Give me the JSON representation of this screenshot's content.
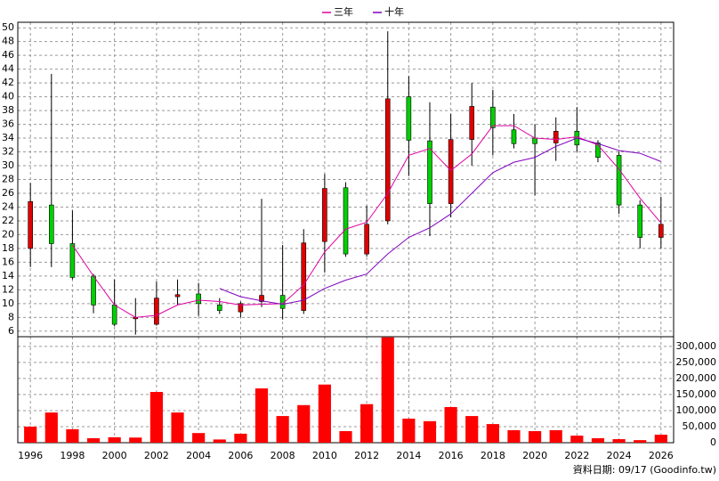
{
  "chart_data": [
    {
      "type": "candlestick",
      "x": [
        1996,
        1997,
        1998,
        1999,
        2000,
        2001,
        2002,
        2003,
        2004,
        2005,
        2006,
        2007,
        2008,
        2009,
        2010,
        2011,
        2012,
        2013,
        2014,
        2015,
        2016,
        2017,
        2018,
        2019,
        2020,
        2021,
        2022,
        2023,
        2024,
        2025,
        2026
      ],
      "open": [
        18,
        24.3,
        18.7,
        14,
        9.8,
        7.8,
        7,
        11,
        11.4,
        9.8,
        8.8,
        10.3,
        11.2,
        9,
        19,
        26.8,
        17.2,
        22,
        40,
        33.6,
        24.5,
        33.8,
        38.5,
        35.2,
        34,
        33.3,
        35,
        33.3,
        31.5,
        24.3,
        19.6
      ],
      "high": [
        27.5,
        43.3,
        23.5,
        14.3,
        13.5,
        10.8,
        13.2,
        13.5,
        13,
        10.8,
        10.3,
        25.2,
        18.5,
        20.8,
        28.8,
        27.6,
        24.2,
        49.5,
        43,
        39.2,
        37.5,
        42,
        41,
        37.5,
        36,
        37,
        38.5,
        33.7,
        32,
        25,
        25.5
      ],
      "low": [
        15.3,
        15.3,
        13.5,
        8.6,
        6.7,
        5.5,
        6.8,
        9.8,
        8.2,
        8.5,
        8,
        9.5,
        7.7,
        8.5,
        14.5,
        16.8,
        16.8,
        21.5,
        28.5,
        19.8,
        22.5,
        30,
        31.5,
        32.5,
        25.7,
        30.7,
        32,
        30.5,
        23,
        18,
        18
      ],
      "close": [
        24.8,
        18.7,
        13.8,
        9.8,
        7,
        8,
        10.8,
        11.3,
        10,
        9,
        10,
        11.2,
        9.3,
        18.8,
        26.7,
        17.2,
        21.5,
        39.7,
        33.7,
        24.5,
        33.8,
        38.6,
        35.5,
        33.2,
        33.2,
        35,
        33,
        31.2,
        24.3,
        19.6,
        21.5
      ],
      "up_color": "#e00000",
      "down_color": "#00d000",
      "series": [
        {
          "name": "三年",
          "color": "#e000a0",
          "values": [
            null,
            null,
            18.5,
            14,
            9.8,
            8,
            8.3,
            9.8,
            10.5,
            10.3,
            9.8,
            9.9,
            10,
            12.7,
            17.5,
            20.8,
            21.8,
            26,
            31.5,
            32.5,
            29.3,
            31.7,
            35.8,
            35.8,
            34,
            33.8,
            34.2,
            33,
            29.5,
            25.3,
            21.7
          ]
        },
        {
          "name": "十年",
          "color": "#8000c0",
          "values": [
            null,
            null,
            null,
            null,
            null,
            null,
            null,
            null,
            null,
            12.2,
            11,
            10.4,
            9.9,
            10.5,
            12.2,
            13.4,
            14.3,
            17.2,
            19.6,
            21,
            23,
            26,
            29,
            30.5,
            31.2,
            32.8,
            34,
            33.2,
            32.2,
            31.8,
            30.6
          ]
        }
      ],
      "xlim": [
        1995.4,
        2026.6
      ],
      "xticks": [
        1996,
        1998,
        2000,
        2002,
        2004,
        2006,
        2008,
        2010,
        2012,
        2014,
        2016,
        2018,
        2020,
        2022,
        2024,
        2026
      ],
      "ylim": [
        5.2,
        50.8
      ],
      "yticks": [
        6,
        8,
        10,
        12,
        14,
        16,
        18,
        20,
        22,
        24,
        26,
        28,
        30,
        32,
        34,
        36,
        38,
        40,
        42,
        44,
        46,
        48,
        50
      ],
      "grid": true
    },
    {
      "type": "bar",
      "x": [
        1996,
        1997,
        1998,
        1999,
        2000,
        2001,
        2002,
        2003,
        2004,
        2005,
        2006,
        2007,
        2008,
        2009,
        2010,
        2011,
        2012,
        2013,
        2014,
        2015,
        2016,
        2017,
        2018,
        2019,
        2020,
        2021,
        2022,
        2023,
        2024,
        2025,
        2026
      ],
      "values": [
        50000,
        94000,
        42000,
        14000,
        17000,
        16000,
        158000,
        94000,
        30000,
        10000,
        28000,
        169000,
        83000,
        117000,
        181000,
        36000,
        120000,
        328000,
        75000,
        67000,
        111000,
        83000,
        58000,
        39000,
        36000,
        39000,
        22000,
        14000,
        11000,
        8000,
        25000
      ],
      "color": "#ff0000",
      "ylim": [
        0,
        330000
      ],
      "yticks": [
        0,
        {
          "value": 50000,
          "label": "50,000"
        },
        {
          "value": 100000,
          "label": "100,000"
        },
        {
          "value": 150000,
          "label": "150,000"
        },
        {
          "value": 200000,
          "label": "200,000"
        },
        {
          "value": 250000,
          "label": "250,000"
        },
        {
          "value": 300000,
          "label": "300,000"
        }
      ],
      "grid": true
    }
  ],
  "footer": "資料日期: 09/17 (Goodinfo.tw)"
}
